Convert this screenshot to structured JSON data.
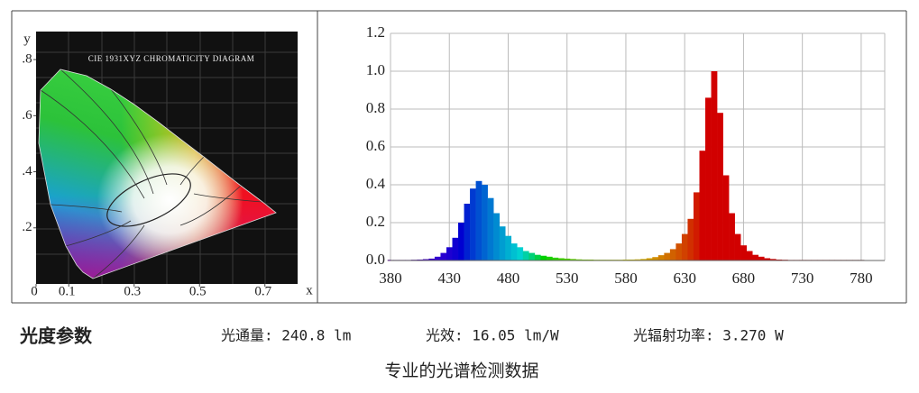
{
  "chart_data": [
    {
      "type": "chromaticity",
      "title": "CIE 1931XYZ CHROMATICITY DIAGRAM",
      "x_label": "x",
      "y_label": "y",
      "xlim": [
        0,
        0.8
      ],
      "ylim": [
        0,
        0.9
      ],
      "xticks": [
        0,
        0.1,
        0.3,
        0.5,
        0.7
      ],
      "yticks": [
        {
          "value": 0.2,
          "label": ".2"
        },
        {
          "value": 0.4,
          "label": ".4"
        },
        {
          "value": 0.6,
          "label": ".6"
        },
        {
          "value": 0.8,
          "label": ".8"
        }
      ]
    },
    {
      "type": "bar",
      "grid": true,
      "x": [
        380,
        385,
        390,
        395,
        400,
        405,
        410,
        415,
        420,
        425,
        430,
        435,
        440,
        445,
        450,
        455,
        460,
        465,
        470,
        475,
        480,
        485,
        490,
        495,
        500,
        505,
        510,
        515,
        520,
        525,
        530,
        535,
        540,
        545,
        550,
        555,
        560,
        565,
        570,
        575,
        580,
        585,
        590,
        595,
        600,
        605,
        610,
        615,
        620,
        625,
        630,
        635,
        640,
        645,
        650,
        655,
        660,
        665,
        670,
        675,
        680,
        685,
        690,
        695,
        700,
        705,
        710,
        715,
        720,
        725,
        730,
        735,
        740,
        745,
        750,
        755,
        760,
        765,
        770,
        775,
        780
      ],
      "values": [
        0.003,
        0.003,
        0.003,
        0.003,
        0.004,
        0.005,
        0.007,
        0.01,
        0.02,
        0.04,
        0.07,
        0.12,
        0.2,
        0.3,
        0.38,
        0.42,
        0.4,
        0.33,
        0.25,
        0.18,
        0.13,
        0.09,
        0.07,
        0.05,
        0.04,
        0.03,
        0.025,
        0.02,
        0.015,
        0.012,
        0.01,
        0.008,
        0.006,
        0.005,
        0.005,
        0.004,
        0.004,
        0.004,
        0.004,
        0.004,
        0.005,
        0.005,
        0.006,
        0.008,
        0.012,
        0.018,
        0.028,
        0.04,
        0.06,
        0.09,
        0.14,
        0.22,
        0.36,
        0.58,
        0.86,
        1.0,
        0.78,
        0.45,
        0.25,
        0.14,
        0.08,
        0.05,
        0.03,
        0.02,
        0.012,
        0.008,
        0.005,
        0.004,
        0.003,
        0.003,
        0.003,
        0.003,
        0.003,
        0.003,
        0.003,
        0.003,
        0.003,
        0.003,
        0.003,
        0.003,
        0.003
      ],
      "xlim": [
        380,
        800
      ],
      "ylim": [
        0,
        1.2
      ],
      "xticks": [
        380,
        430,
        480,
        530,
        580,
        630,
        680,
        730,
        780
      ],
      "yticks": [
        {
          "value": 0,
          "label": "0.0"
        },
        0.2,
        0.4,
        0.6,
        0.8,
        {
          "value": 1,
          "label": "1.0"
        },
        1.2
      ]
    }
  ],
  "parameters": {
    "heading": "光度参数",
    "items": [
      "光通量: 240.8 lm",
      "光效: 16.05 lm/W",
      "光辐射功率: 3.270 W"
    ]
  },
  "caption": "专业的光谱检测数据"
}
